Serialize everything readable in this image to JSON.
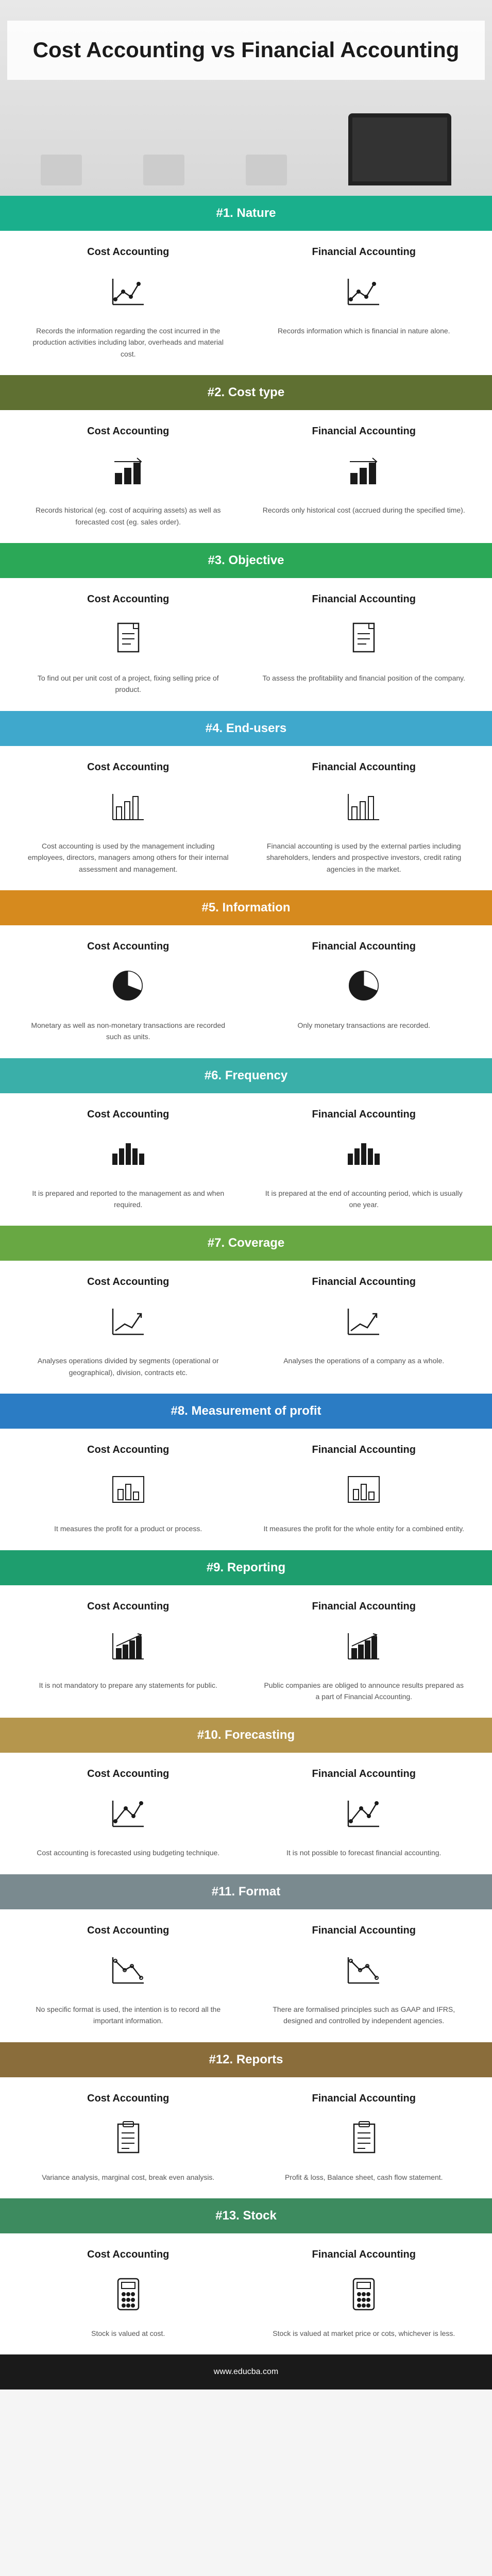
{
  "title": "Cost Accounting vs Financial Accounting",
  "colLeft": "Cost Accounting",
  "colRight": "Financial Accounting",
  "footer": "www.educba.com",
  "colors": {
    "green1": "#1aaf8c",
    "olive": "#5f7032",
    "green2": "#2ba857",
    "blue1": "#3fa8cc",
    "orange": "#d68a1e",
    "teal": "#3aafa9",
    "green3": "#68a843",
    "blue2": "#2b7cc4",
    "green4": "#1e9e6e",
    "tan": "#b5964d",
    "gray": "#7a8a8f",
    "brown": "#8a6d3b",
    "green5": "#3d8b5f"
  },
  "sections": [
    {
      "id": 1,
      "title": "#1. Nature",
      "colorKey": "green1",
      "iconLeft": "line-chart",
      "iconRight": "line-chart",
      "left": "Records the information regarding the cost incurred in the production activities including labor, overheads and material cost.",
      "right": "Records information which is financial in nature alone."
    },
    {
      "id": 2,
      "title": "#2. Cost type",
      "colorKey": "olive",
      "iconLeft": "bar-up",
      "iconRight": "bar-up",
      "left": "Records historical (eg. cost of acquiring assets) as well as forecasted cost (eg. sales order).",
      "right": "Records only historical cost (accrued during the specified time)."
    },
    {
      "id": 3,
      "title": "#3. Objective",
      "colorKey": "green2",
      "iconLeft": "document",
      "iconRight": "document",
      "left": "To find out per unit cost of a project, fixing selling price of product.",
      "right": "To assess the profitability and financial position of the company."
    },
    {
      "id": 4,
      "title": "#4. End-users",
      "colorKey": "blue1",
      "iconLeft": "bar-chart",
      "iconRight": "bar-chart",
      "left": "Cost accounting is used by the management including employees, directors, managers among others for their internal assessment and management.",
      "right": "Financial accounting is used by the external parties including shareholders, lenders and prospective investors, credit rating agencies in the market."
    },
    {
      "id": 5,
      "title": "#5. Information",
      "colorKey": "orange",
      "iconLeft": "pie",
      "iconRight": "pie",
      "left": "Monetary as well as non-monetary transactions are recorded such as units.",
      "right": "Only monetary transactions are recorded."
    },
    {
      "id": 6,
      "title": "#6. Frequency",
      "colorKey": "teal",
      "iconLeft": "bars",
      "iconRight": "bars",
      "left": "It is prepared and reported to the management as and when required.",
      "right": "It is prepared at the end of accounting period, which is usually one year."
    },
    {
      "id": 7,
      "title": "#7. Coverage",
      "colorKey": "green3",
      "iconLeft": "arrow-up",
      "iconRight": "arrow-up",
      "left": "Analyses operations divided by segments (operational or geographical), division, contracts etc.",
      "right": "Analyses the operations of a company as a whole."
    },
    {
      "id": 8,
      "title": "#8. Measurement of profit",
      "colorKey": "blue2",
      "iconLeft": "bar-box",
      "iconRight": "bar-box",
      "left": "It measures the profit for a product or process.",
      "right": "It measures the profit for the whole entity for a combined entity."
    },
    {
      "id": 9,
      "title": "#9. Reporting",
      "colorKey": "green4",
      "iconLeft": "growth",
      "iconRight": "growth",
      "left": "It is not mandatory to prepare any statements for public.",
      "right": "Public companies are obliged to announce results prepared as a part of Financial Accounting."
    },
    {
      "id": 10,
      "title": "#10. Forecasting",
      "colorKey": "tan",
      "iconLeft": "trend",
      "iconRight": "trend",
      "left": "Cost accounting is forecasted using budgeting technique.",
      "right": "It is not possible to forecast financial accounting."
    },
    {
      "id": 11,
      "title": "#11. Format",
      "colorKey": "gray",
      "iconLeft": "decline",
      "iconRight": "decline",
      "left": "No specific format is used, the intention is to record all the important information.",
      "right": "There are formalised principles such as GAAP and IFRS, designed and controlled by independent agencies."
    },
    {
      "id": 12,
      "title": "#12. Reports",
      "colorKey": "brown",
      "iconLeft": "report",
      "iconRight": "report",
      "left": "Variance analysis, marginal cost, break even analysis.",
      "right": "Profit & loss, Balance sheet, cash flow statement."
    },
    {
      "id": 13,
      "title": "#13. Stock",
      "colorKey": "green5",
      "iconLeft": "calculator",
      "iconRight": "calculator",
      "left": "Stock is valued at cost.",
      "right": "Stock is valued at market price or cots, whichever is less."
    }
  ]
}
